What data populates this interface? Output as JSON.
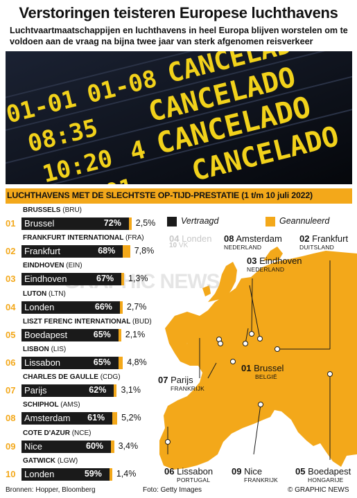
{
  "header": {
    "title": "Verstoringen teisteren Europese luchthavens",
    "subtitle": "Luchtvaartmaatschappijen en luchthavens in heel Europa blijven worstelen om te voldoen aan de vraag na bijna twee jaar van sterk afgenomen reisverkeer"
  },
  "photo": {
    "board_rows": [
      "01-01",
      "01-08",
      "08:35",
      "10:20",
      "4",
      "CANCELADO"
    ]
  },
  "section": {
    "title": "LUCHTHAVENS MET DE SLECHTSTE OP-TIJD-PRESTATIE (1 t/m 10 juli 2022)"
  },
  "legend": {
    "delayed": "Vertraagd",
    "cancelled": "Geannuleerd",
    "colors": {
      "delayed": "#1a1a1a",
      "cancelled": "#f3a81a"
    }
  },
  "airports": [
    {
      "rank": "01",
      "airport": "BRUSSELS",
      "code": "(BRU)",
      "city": "Brussel",
      "delayed": "72%",
      "delayed_value": 72,
      "cancelled": "2,5%",
      "cancelled_value": 2.5
    },
    {
      "rank": "02",
      "airport": "FRANKFURT INTERNATIONAL",
      "code": "(FRA)",
      "city": "Frankfurt",
      "delayed": "68%",
      "delayed_value": 68,
      "cancelled": "7,8%",
      "cancelled_value": 7.8
    },
    {
      "rank": "03",
      "airport": "EINDHOVEN",
      "code": "(EIN)",
      "city": "Eindhoven",
      "delayed": "67%",
      "delayed_value": 67,
      "cancelled": "1,3%",
      "cancelled_value": 1.3
    },
    {
      "rank": "04",
      "airport": "LUTON",
      "code": "(LTN)",
      "city": "Londen",
      "delayed": "66%",
      "delayed_value": 66,
      "cancelled": "2,7%",
      "cancelled_value": 2.7
    },
    {
      "rank": "05",
      "airport": "LISZT FERENC INTERNATIONAL",
      "code": "(BUD)",
      "city": "Boedapest",
      "delayed": "65%",
      "delayed_value": 65,
      "cancelled": "2,1%",
      "cancelled_value": 2.1
    },
    {
      "rank": "06",
      "airport": "LISBON",
      "code": "(LIS)",
      "city": "Lissabon",
      "delayed": "65%",
      "delayed_value": 65,
      "cancelled": "4,8%",
      "cancelled_value": 4.8
    },
    {
      "rank": "07",
      "airport": "CHARLES DE GAULLE",
      "code": "(CDG)",
      "city": "Parijs",
      "delayed": "62%",
      "delayed_value": 62,
      "cancelled": "3,1%",
      "cancelled_value": 3.1
    },
    {
      "rank": "08",
      "airport": "SCHIPHOL",
      "code": "(AMS)",
      "city": "Amsterdam",
      "delayed": "61%",
      "delayed_value": 61,
      "cancelled": "5,2%",
      "cancelled_value": 5.2
    },
    {
      "rank": "09",
      "airport": "COTE D'AZUR",
      "code": "(NCE)",
      "city": "Nice",
      "delayed": "60%",
      "delayed_value": 60,
      "cancelled": "3,4%",
      "cancelled_value": 3.4
    },
    {
      "rank": "10",
      "airport": "GATWICK",
      "code": "(LGW)",
      "city": "Londen",
      "delayed": "59%",
      "delayed_value": 59,
      "cancelled": "1,4%",
      "cancelled_value": 1.4
    }
  ],
  "map_labels": [
    {
      "num": "04",
      "city": "Londen",
      "country": ""
    },
    {
      "num": "10",
      "city": "VK",
      "country": ""
    },
    {
      "num": "08",
      "city": "Amsterdam",
      "country": "NEDERLAND"
    },
    {
      "num": "02",
      "city": "Frankfurt",
      "country": "DUITSLAND"
    },
    {
      "num": "03",
      "city": "Eindhoven",
      "country": "NEDERLAND"
    },
    {
      "num": "01",
      "city": "Brussel",
      "country": "BELGIË"
    },
    {
      "num": "07",
      "city": "Parijs",
      "country": "FRANKRIJK"
    },
    {
      "num": "06",
      "city": "Lissabon",
      "country": "PORTUGAL"
    },
    {
      "num": "09",
      "city": "Nice",
      "country": "FRANKRIJK"
    },
    {
      "num": "05",
      "city": "Boedapest",
      "country": "HONGARIJE"
    }
  ],
  "footer": {
    "sources": "Bronnen: Hopper, Bloomberg",
    "photo_credit": "Foto: Getty Images",
    "copyright": "© GRAPHIC NEWS"
  },
  "watermark": "GRAPHIC NEWS"
}
